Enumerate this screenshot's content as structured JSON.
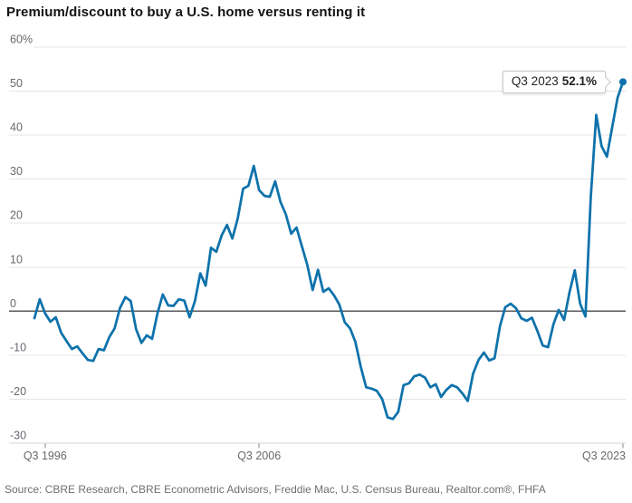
{
  "title": "Premium/discount to buy a U.S. home versus renting it",
  "source": "Source: CBRE Research, CBRE Econometric Advisors, Freddie Mac, U.S. Census Bureau, Realtor.com®, FHFA",
  "annotation": {
    "label": "Q3 2023",
    "value": "52.1%"
  },
  "colors": {
    "line": "#0e72ab",
    "grid": "#e4e4e4",
    "zero_line": "#58595b",
    "axis": "#d4d4d4",
    "tick": "#8a8a8a",
    "axis_label": "#67696e",
    "title": "#141414",
    "source": "#6f6f71",
    "annotation_border": "#c9c9c9",
    "annotation_bg": "#ffffff"
  },
  "chart_data": {
    "type": "line",
    "title": "Premium/discount to buy a U.S. home versus renting it",
    "unit": "%",
    "frequency": "quarterly",
    "start": "Q1 1996",
    "end": "Q3 2023",
    "grid": true,
    "ylim": [
      -30,
      60
    ],
    "y_ticks": [
      {
        "value": 60,
        "label": "60%"
      },
      {
        "value": 50,
        "label": "50"
      },
      {
        "value": 40,
        "label": "40"
      },
      {
        "value": 30,
        "label": "30"
      },
      {
        "value": 20,
        "label": "20"
      },
      {
        "value": 10,
        "label": "10"
      },
      {
        "value": 0,
        "label": "0"
      },
      {
        "value": -10,
        "label": "-10"
      },
      {
        "value": -20,
        "label": "-20"
      },
      {
        "value": -30,
        "label": "-30"
      }
    ],
    "x_ticks": [
      {
        "index": 2,
        "label": "Q3 1996"
      },
      {
        "index": 42,
        "label": "Q3 2006"
      },
      {
        "index": 110,
        "label": "Q3 2023"
      }
    ],
    "end_point": {
      "label": "Q3 2023",
      "value": 52.1
    },
    "series": [
      {
        "name": "Premium/discount to buy vs. rent",
        "values": [
          -1.6,
          2.7,
          -0.5,
          -2.4,
          -1.4,
          -4.9,
          -6.8,
          -8.6,
          -8.0,
          -9.6,
          -11.1,
          -11.3,
          -8.6,
          -8.9,
          -5.9,
          -3.9,
          0.7,
          3.2,
          2.3,
          -4.1,
          -7.2,
          -5.5,
          -6.3,
          -0.5,
          3.8,
          1.3,
          1.2,
          2.7,
          2.4,
          -1.4,
          2.3,
          8.6,
          5.8,
          14.4,
          13.5,
          17.2,
          19.6,
          16.5,
          21.0,
          27.8,
          28.5,
          33.0,
          27.5,
          26.2,
          26.0,
          29.5,
          24.8,
          22.0,
          17.6,
          19.0,
          14.7,
          10.5,
          4.8,
          9.4,
          4.4,
          5.2,
          3.6,
          1.5,
          -2.5,
          -3.9,
          -7.0,
          -12.7,
          -17.3,
          -17.6,
          -18.1,
          -20.0,
          -24.1,
          -24.5,
          -22.9,
          -16.8,
          -16.4,
          -14.8,
          -14.4,
          -15.1,
          -17.3,
          -16.6,
          -19.5,
          -17.9,
          -16.8,
          -17.3,
          -18.7,
          -20.4,
          -14.2,
          -11.1,
          -9.4,
          -11.2,
          -10.7,
          -3.5,
          0.9,
          1.7,
          0.7,
          -1.6,
          -2.2,
          -1.5,
          -4.5,
          -7.8,
          -8.2,
          -3.0,
          0.3,
          -2.0,
          4.2,
          9.3,
          1.7,
          -1.2,
          26.0,
          44.6,
          37.5,
          35.1,
          41.9,
          48.5,
          52.1
        ]
      }
    ]
  }
}
